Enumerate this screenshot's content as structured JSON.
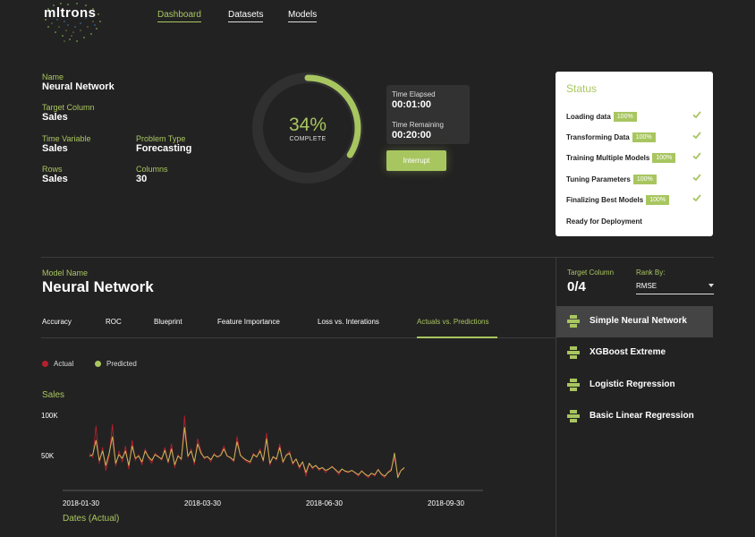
{
  "brand": {
    "name": "mltrons"
  },
  "nav": {
    "items": [
      {
        "label": "Dashboard",
        "active": true
      },
      {
        "label": "Datasets",
        "active": false
      },
      {
        "label": "Models",
        "active": false
      }
    ]
  },
  "info": {
    "name_label": "Name",
    "name_value": "Neural Network",
    "target_label": "Target Column",
    "target_value": "Sales",
    "time_var_label": "Time Variable",
    "time_var_value": "Sales",
    "problem_label": "Problem Type",
    "problem_value": "Forecasting",
    "rows_label": "Rows",
    "rows_value": "Sales",
    "columns_label": "Columns",
    "columns_value": "30"
  },
  "progress": {
    "percent_text": "34%",
    "percent": 0.34,
    "subtitle": "COMPLETE"
  },
  "timer": {
    "elapsed_label": "Time Elapsed",
    "elapsed_value": "00:01:00",
    "remaining_label": "Time Remaining",
    "remaining_value": "00:20:00",
    "interrupt_label": "Interrupt"
  },
  "status": {
    "title": "Status",
    "rows": [
      {
        "label": "Loading data",
        "badge": "100%",
        "done": true
      },
      {
        "label": "Transforming Data",
        "badge": "100%",
        "done": true
      },
      {
        "label": "Training Multiple Models",
        "badge": "100%",
        "done": true
      },
      {
        "label": "Tuning Parameters",
        "badge": "100%",
        "done": true
      },
      {
        "label": "Finalizing Best Models",
        "badge": "100%",
        "done": true
      },
      {
        "label": "Ready for Deployment",
        "badge": "",
        "done": false
      }
    ]
  },
  "model": {
    "label": "Model Name",
    "title": "Neural Network",
    "tabs": [
      {
        "label": "Accuracy",
        "active": false
      },
      {
        "label": "ROC",
        "active": false
      },
      {
        "label": "Blueprint",
        "active": false
      },
      {
        "label": "Feature Importance",
        "active": false
      },
      {
        "label": "Loss vs. Interations",
        "active": false
      },
      {
        "label": "Actuals vs. Predictions",
        "active": true
      }
    ]
  },
  "legend": {
    "actual": "Actual",
    "predicted": "Predicted"
  },
  "colors": {
    "accent": "#a8c660",
    "actual": "#b5202e",
    "predicted": "#c9b75a",
    "background": "#232222"
  },
  "chart_data": {
    "type": "line",
    "title": "Sales",
    "xlabel": "Dates (Actual)",
    "ylabel": "",
    "x_ticks": [
      "2018-01-30",
      "2018-03-30",
      "2018-06-30",
      "2018-09-30"
    ],
    "y_ticks": [
      "100K",
      "50K"
    ],
    "ylim": [
      0,
      110000
    ],
    "series": [
      {
        "name": "Actual",
        "values": [
          52000,
          46000,
          90000,
          38000,
          60000,
          28000,
          48000,
          92000,
          34000,
          55000,
          40000,
          62000,
          30000,
          70000,
          42000,
          50000,
          36000,
          58000,
          45000,
          38000,
          52000,
          48000,
          42000,
          60000,
          38000,
          65000,
          32000,
          50000,
          42000,
          104000,
          46000,
          58000,
          36000,
          72000,
          55000,
          44000,
          48000,
          40000,
          52000,
          46000,
          50000,
          62000,
          48000,
          45000,
          40000,
          75000,
          50000,
          44000,
          40000,
          38000,
          52000,
          46000,
          58000,
          40000,
          80000,
          35000,
          48000,
          42000,
          65000,
          38000,
          50000,
          55000,
          36000,
          44000,
          30000,
          40000,
          20000,
          38000,
          30000,
          35000,
          28000,
          32000,
          25000,
          30000,
          34000,
          28000,
          22000,
          30000,
          26000,
          25000,
          28000,
          24000,
          20000,
          28000,
          22000,
          18000,
          24000,
          20000,
          30000,
          22000,
          18000,
          26000,
          30000,
          45000,
          22000,
          28000,
          30000
        ]
      },
      {
        "name": "Predicted",
        "values": [
          48000,
          50000,
          70000,
          42000,
          55000,
          35000,
          52000,
          75000,
          38000,
          50000,
          45000,
          55000,
          35000,
          62000,
          45000,
          48000,
          40000,
          55000,
          47000,
          42000,
          50000,
          47000,
          44000,
          56000,
          40000,
          58000,
          36000,
          48000,
          44000,
          88000,
          48000,
          55000,
          40000,
          65000,
          52000,
          46000,
          47000,
          43000,
          50000,
          47000,
          49000,
          58000,
          48000,
          46000,
          42000,
          68000,
          49000,
          45000,
          42000,
          40000,
          50000,
          47000,
          55000,
          42000,
          72000,
          38000,
          47000,
          44000,
          60000,
          40000,
          49000,
          52000,
          38000,
          44000,
          33000,
          40000,
          25000,
          38000,
          32000,
          35000,
          30000,
          32000,
          28000,
          30000,
          33000,
          29000,
          25000,
          30000,
          27000,
          26000,
          28000,
          25000,
          22000,
          27000,
          23000,
          20000,
          24000,
          22000,
          29000,
          23000,
          20000,
          25000,
          28000,
          52000,
          18000,
          28000,
          32000
        ]
      }
    ],
    "grid": false,
    "legend_position": "top-left"
  },
  "right_panel": {
    "target_label": "Target Column",
    "target_value": "0/4",
    "rank_label": "Rank By:",
    "rank_value": "RMSE",
    "models": [
      {
        "name": "Simple Neural Network",
        "active": true,
        "icon": "model-icon"
      },
      {
        "name": "XGBoost Extreme",
        "active": false,
        "icon": "model-icon"
      },
      {
        "name": "Logistic Regression",
        "active": false,
        "icon": "model-icon"
      },
      {
        "name": "Basic Linear Regression",
        "active": false,
        "icon": "model-icon"
      }
    ]
  }
}
